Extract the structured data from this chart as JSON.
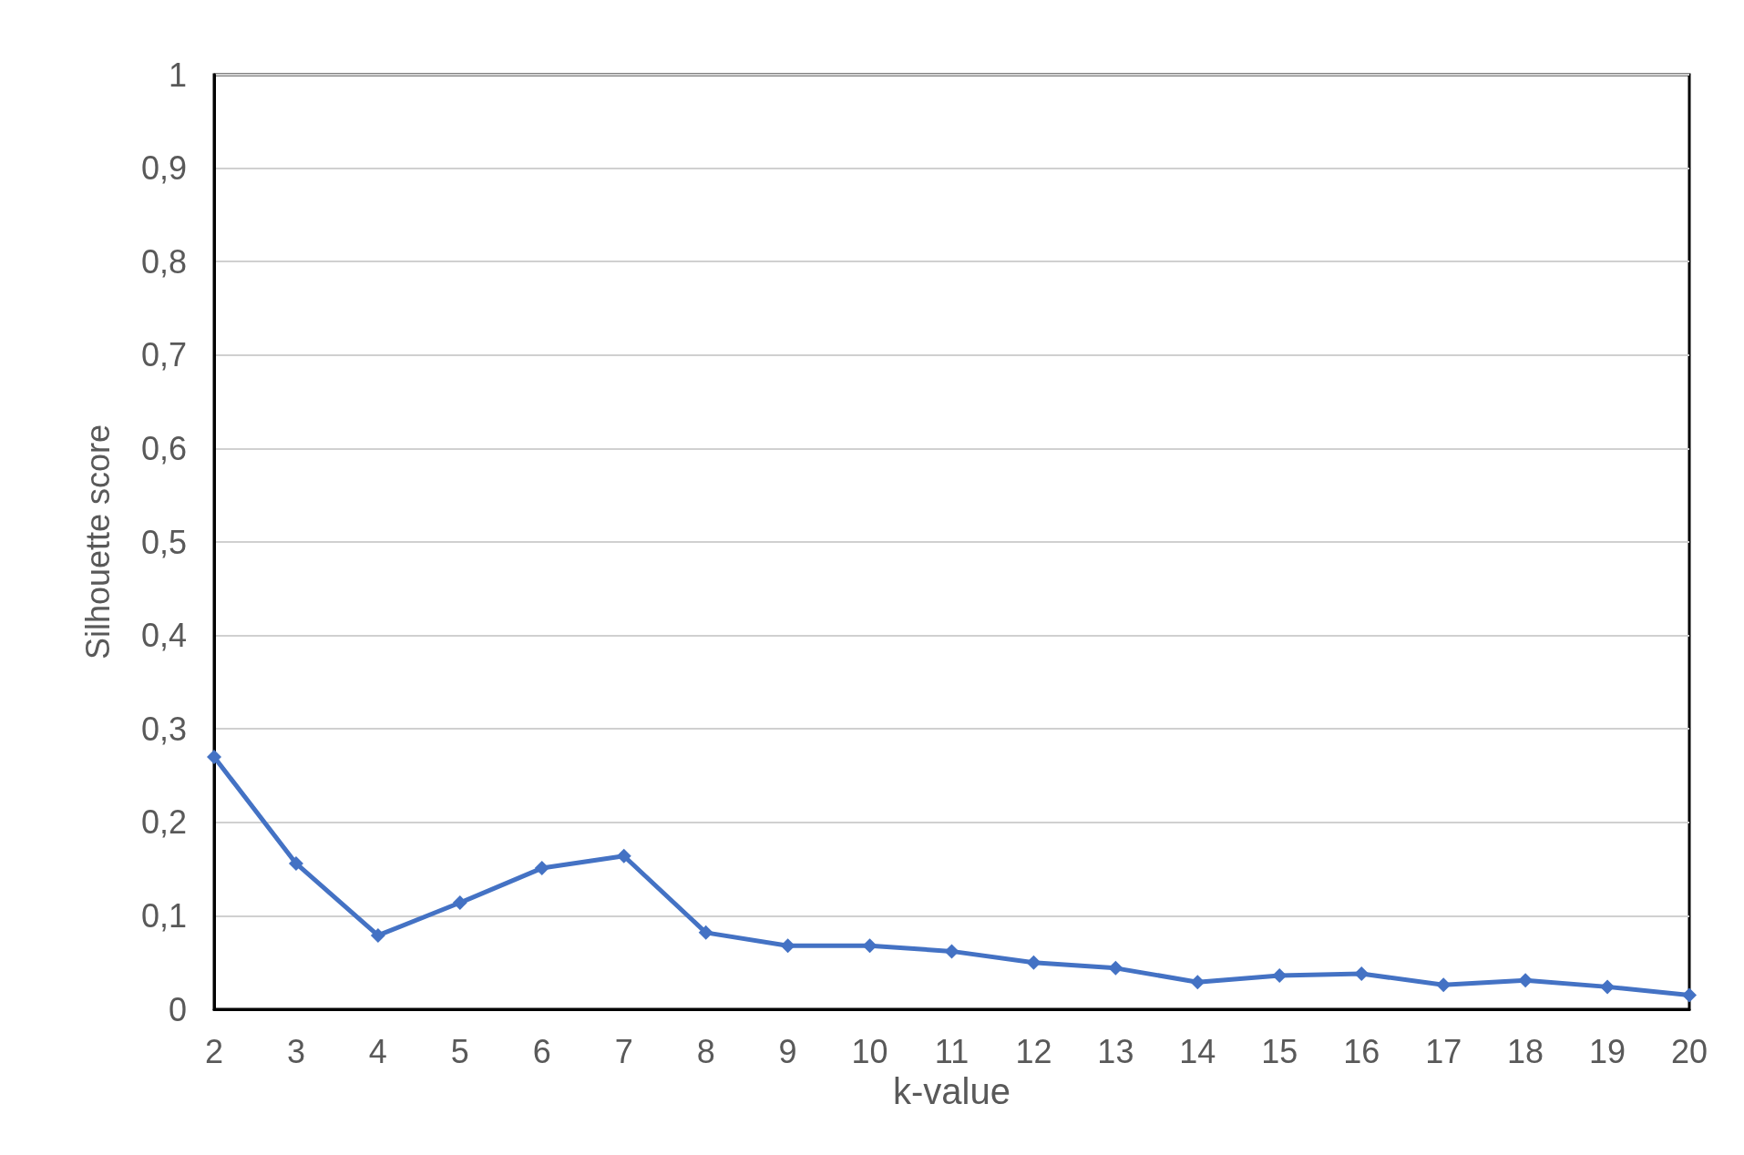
{
  "chart_data": {
    "type": "line",
    "xlabel": "k-value",
    "ylabel": "Silhouette score",
    "categories": [
      "2",
      "3",
      "4",
      "5",
      "6",
      "7",
      "8",
      "9",
      "10",
      "11",
      "12",
      "13",
      "14",
      "15",
      "16",
      "17",
      "18",
      "19",
      "20"
    ],
    "series": [
      {
        "color": "#4472c4",
        "values": [
          0.27,
          0.156,
          0.079,
          0.114,
          0.151,
          0.164,
          0.082,
          0.068,
          0.068,
          0.062,
          0.05,
          0.044,
          0.029,
          0.036,
          0.038,
          0.026,
          0.031,
          0.024,
          0.015
        ]
      }
    ],
    "ylim": [
      0,
      1
    ],
    "yticks": [
      0,
      {
        "value": 0.1,
        "label": "0,1"
      },
      {
        "value": 0.2,
        "label": "0,2"
      },
      {
        "value": 0.3,
        "label": "0,3"
      },
      {
        "value": 0.4,
        "label": "0,4"
      },
      {
        "value": 0.5,
        "label": "0,5"
      },
      {
        "value": 0.6,
        "label": "0,6"
      },
      {
        "value": 0.7,
        "label": "0,7"
      },
      {
        "value": 0.8,
        "label": "0,8"
      },
      {
        "value": 0.9,
        "label": "0,9"
      },
      1
    ],
    "grid": "y",
    "marker": "diamond",
    "line_style": "solid"
  }
}
